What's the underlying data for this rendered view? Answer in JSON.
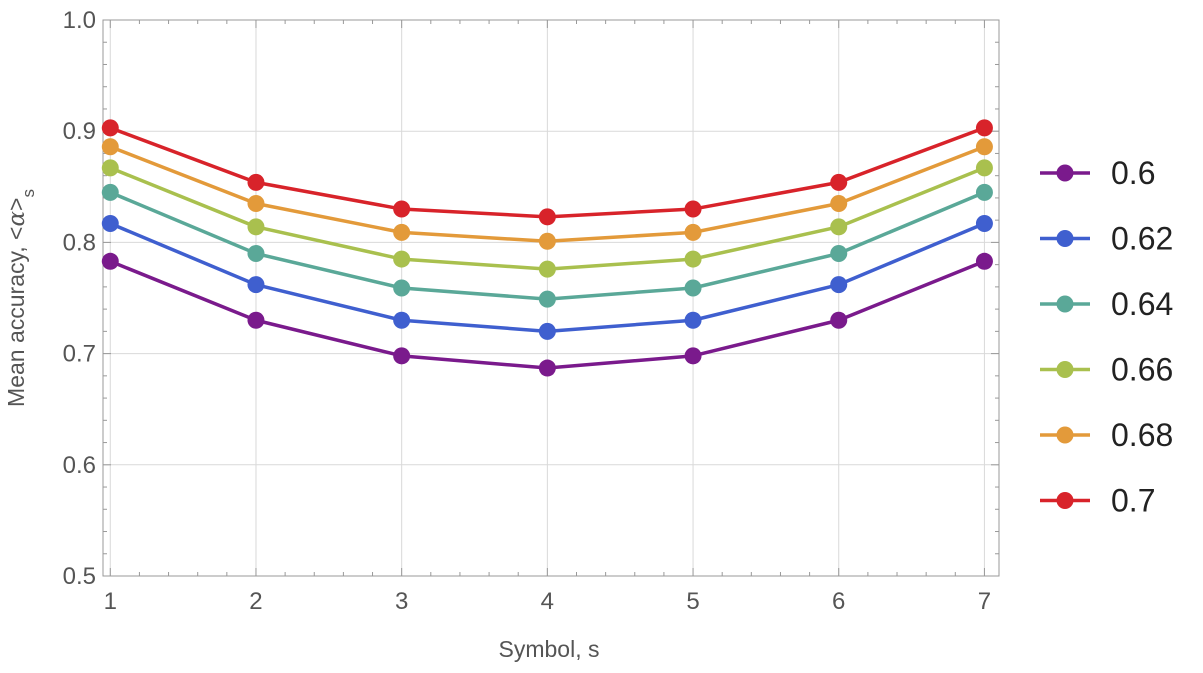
{
  "chart_data": {
    "type": "line",
    "xlabel": "Symbol, s",
    "ylabel": "Mean accuracy, <α>s",
    "ylabel_main": "Mean accuracy, <",
    "ylabel_symbol": "α",
    "ylabel_close": ">",
    "ylabel_sub": "s",
    "x": [
      1,
      2,
      3,
      4,
      5,
      6,
      7
    ],
    "x_ticks": [
      "1",
      "2",
      "3",
      "4",
      "5",
      "6",
      "7"
    ],
    "y_ticks": [
      "0.5",
      "0.6",
      "0.7",
      "0.8",
      "0.9",
      "1.0"
    ],
    "xlim": [
      0.95,
      7.1
    ],
    "ylim": [
      0.5,
      1.0
    ],
    "grid": true,
    "legend_position": "right",
    "series": [
      {
        "name": "0.6",
        "color": "#7a1a8c",
        "values": [
          0.783,
          0.73,
          0.698,
          0.687,
          0.698,
          0.73,
          0.783
        ]
      },
      {
        "name": "0.62",
        "color": "#3f5fcf",
        "values": [
          0.817,
          0.762,
          0.73,
          0.72,
          0.73,
          0.762,
          0.817
        ]
      },
      {
        "name": "0.64",
        "color": "#5aa898",
        "values": [
          0.845,
          0.79,
          0.759,
          0.749,
          0.759,
          0.79,
          0.845
        ]
      },
      {
        "name": "0.66",
        "color": "#a9c04e",
        "values": [
          0.867,
          0.814,
          0.785,
          0.776,
          0.785,
          0.814,
          0.867
        ]
      },
      {
        "name": "0.68",
        "color": "#e39a3a",
        "values": [
          0.886,
          0.835,
          0.809,
          0.801,
          0.809,
          0.835,
          0.886
        ]
      },
      {
        "name": "0.7",
        "color": "#d8232a",
        "values": [
          0.903,
          0.854,
          0.83,
          0.823,
          0.83,
          0.854,
          0.903
        ]
      }
    ]
  }
}
